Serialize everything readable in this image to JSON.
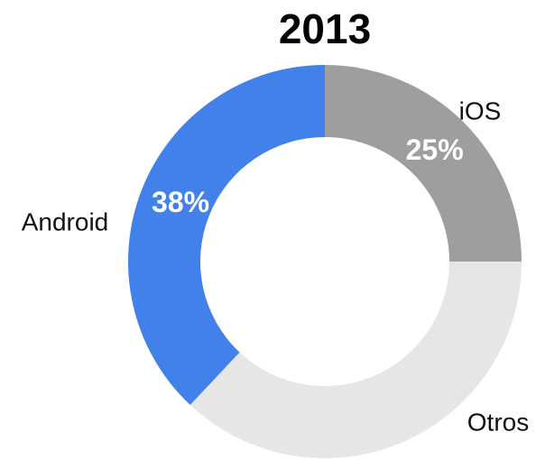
{
  "chart_data": {
    "type": "donut",
    "title": "2013",
    "categories": [
      "iOS",
      "Otros",
      "Android"
    ],
    "values": [
      25,
      37,
      38
    ],
    "value_labels": [
      "25%",
      null,
      "38%"
    ],
    "colors": [
      "#9e9e9e",
      "#e6e6e6",
      "#4281ea"
    ]
  }
}
